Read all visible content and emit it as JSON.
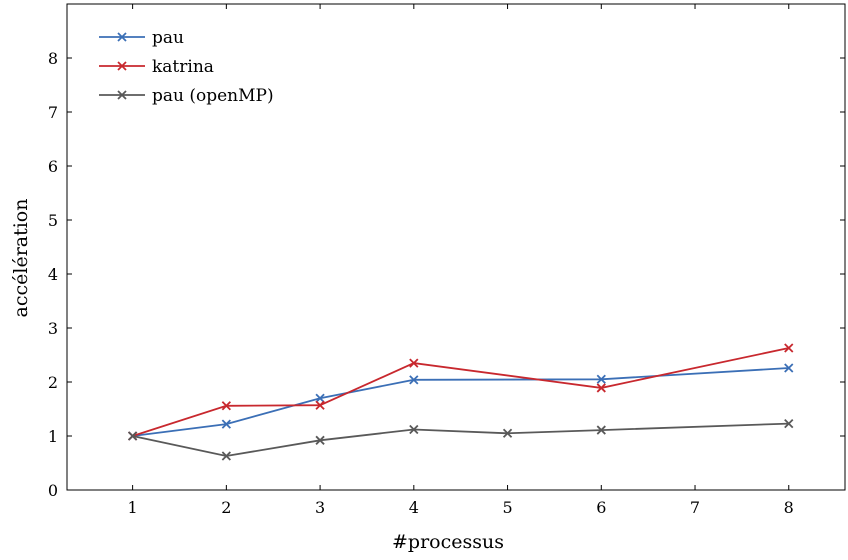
{
  "chart_data": {
    "type": "line",
    "title": "",
    "xlabel": "#processus",
    "ylabel": "accélération",
    "x_ticks": [
      1,
      2,
      3,
      4,
      5,
      6,
      7,
      8
    ],
    "y_ticks": [
      0,
      1,
      2,
      3,
      4,
      5,
      6,
      7,
      8
    ],
    "xlim": [
      0.3,
      8.6
    ],
    "ylim": [
      0,
      9
    ],
    "grid": false,
    "legend_position": "top-left",
    "marker": "x",
    "series": [
      {
        "name": "pau",
        "color": "#3b6fb6",
        "x": [
          1,
          2,
          3,
          4,
          6,
          8
        ],
        "y": [
          1.0,
          1.22,
          1.7,
          2.04,
          2.05,
          2.26
        ]
      },
      {
        "name": "katrina",
        "color": "#c8282e",
        "x": [
          1,
          2,
          3,
          4,
          6,
          8
        ],
        "y": [
          1.0,
          1.56,
          1.57,
          2.35,
          1.89,
          2.63
        ]
      },
      {
        "name": "pau (openMP)",
        "color": "#595959",
        "x": [
          1,
          2,
          3,
          4,
          5,
          6,
          8
        ],
        "y": [
          1.0,
          0.63,
          0.92,
          1.12,
          1.05,
          1.11,
          1.23
        ]
      }
    ]
  }
}
